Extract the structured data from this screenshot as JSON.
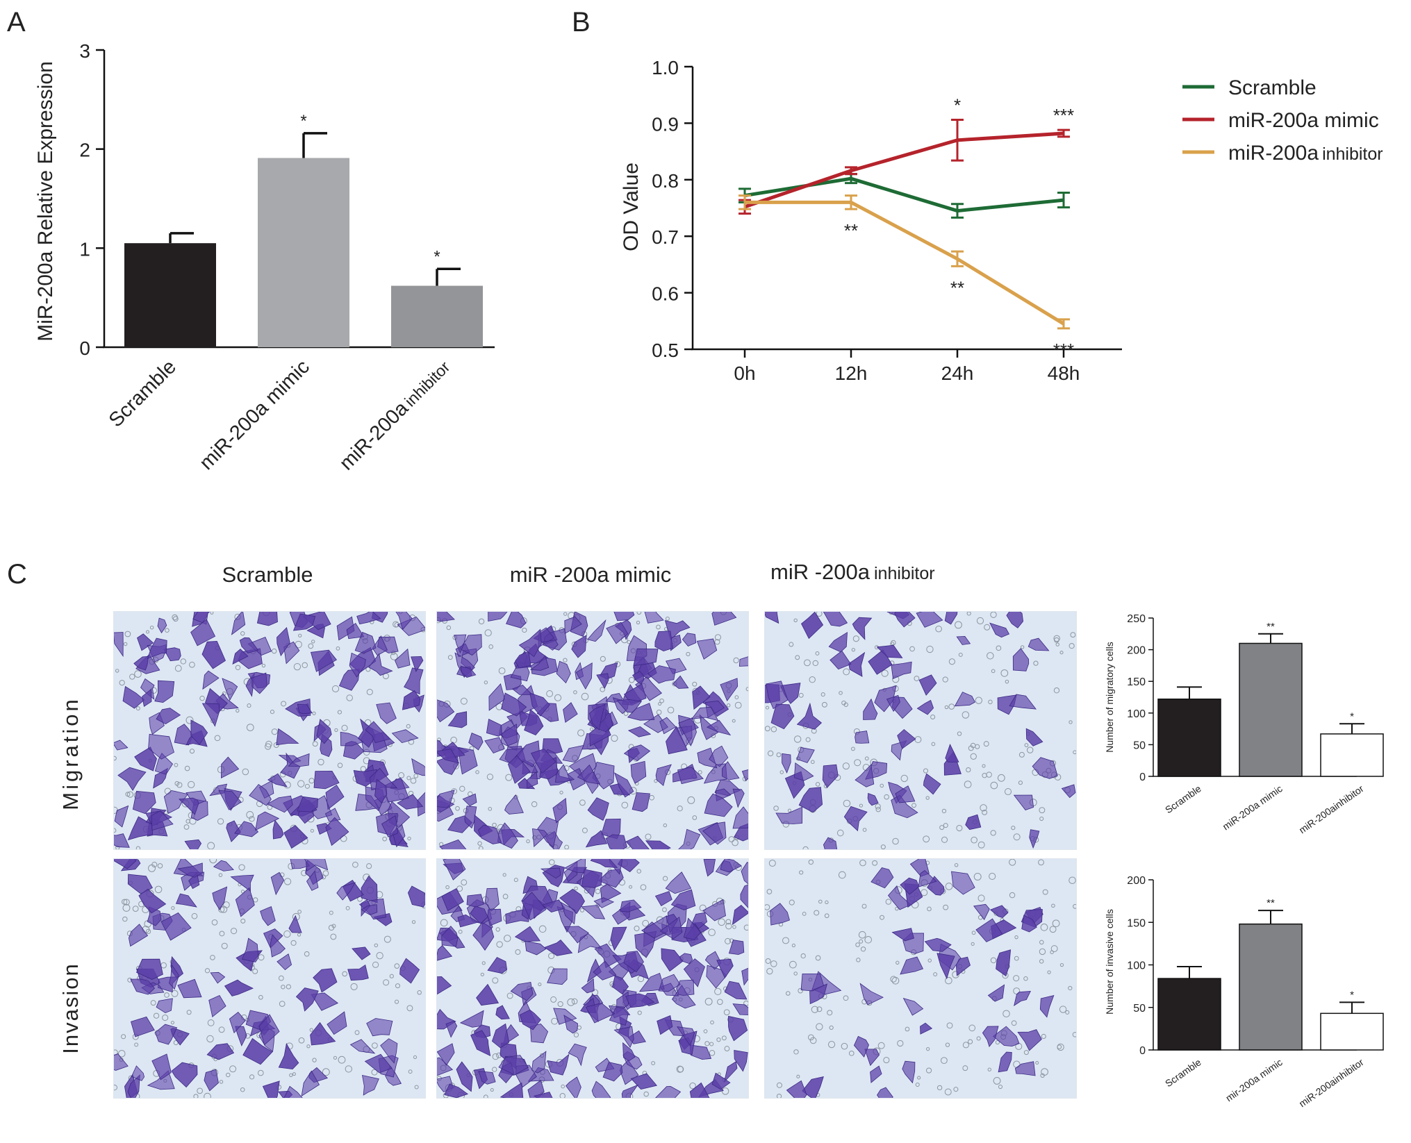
{
  "colors": {
    "scramble_bar": "#231f20",
    "mimic_bar": "#a7a9ac",
    "inhibitor_bar_a": "#939598",
    "mimic_bar_c": "#808285",
    "inhibitor_bar_c": "#ffffff",
    "line_scramble": "#1e6b35",
    "line_mimic": "#b5232b",
    "line_inhibitor": "#d9a14c",
    "stain": "#5b3fa8",
    "background_field": "#dde7f3"
  },
  "panels": {
    "a_letter": "A",
    "b_letter": "B",
    "c_letter": "C"
  },
  "chart_data": [
    {
      "panel": "A",
      "type": "bar",
      "ylabel": "MiR-200a Relative Expression",
      "ylim": [
        0,
        3
      ],
      "yticks": [
        "0",
        "1",
        "2",
        "3"
      ],
      "categories": [
        "Scramble",
        "miR-200a mimic",
        "miR-200a inhibitor"
      ],
      "category_main": [
        "Scramble",
        "miR-200a mimic",
        "miR-200a"
      ],
      "category_small": [
        "",
        "",
        "inhibitor"
      ],
      "values": [
        1.05,
        1.91,
        0.62
      ],
      "errors": [
        0.1,
        0.25,
        0.17
      ],
      "significance": [
        "",
        "*",
        "*"
      ]
    },
    {
      "panel": "B",
      "type": "line",
      "ylabel": "OD Value",
      "ylim": [
        0.5,
        1.0
      ],
      "yticks": [
        "0.5",
        "0.6",
        "0.7",
        "0.8",
        "0.9",
        "1.0"
      ],
      "x": [
        "0h",
        "12h",
        "24h",
        "48h"
      ],
      "legend_position": "right",
      "series": [
        {
          "name": "Scramble",
          "values": [
            0.772,
            0.802,
            0.745,
            0.764
          ],
          "errors": [
            0.012,
            0.008,
            0.012,
            0.013
          ],
          "significance": [
            "",
            "",
            "",
            ""
          ]
        },
        {
          "name": "miR-200a mimic",
          "values": [
            0.752,
            0.816,
            0.87,
            0.882
          ],
          "errors": [
            0.012,
            0.006,
            0.036,
            0.006
          ],
          "significance": [
            "",
            "",
            "*",
            "***"
          ]
        },
        {
          "name": "miR-200a inhibitor",
          "name_main": "miR-200a",
          "name_small": "inhibitor",
          "values": [
            0.76,
            0.76,
            0.66,
            0.545
          ],
          "errors": [
            0.012,
            0.012,
            0.013,
            0.008
          ],
          "significance": [
            "",
            "**",
            "**",
            "***"
          ]
        }
      ]
    },
    {
      "panel": "C-migration",
      "type": "bar",
      "ylabel": "Number of migratory cells",
      "ylim": [
        0,
        250
      ],
      "yticks": [
        "0",
        "50",
        "100",
        "150",
        "200",
        "250"
      ],
      "categories": [
        "Scramble",
        "miR-200a mimic",
        "miR-200ainhibitor"
      ],
      "values": [
        122,
        210,
        67
      ],
      "errors": [
        19,
        15,
        16
      ],
      "significance": [
        "",
        "**",
        "*"
      ]
    },
    {
      "panel": "C-invasion",
      "type": "bar",
      "ylabel": "Number of invasive cells",
      "ylim": [
        0,
        200
      ],
      "yticks": [
        "0",
        "50",
        "100",
        "150",
        "200"
      ],
      "categories": [
        "Scramble",
        "mir-200a mimic",
        "miR-200ainhibitor"
      ],
      "values": [
        84,
        148,
        43
      ],
      "errors": [
        14,
        16,
        13
      ],
      "significance": [
        "",
        "**",
        "*"
      ]
    }
  ],
  "micrographs": {
    "col_headers": [
      "Scramble",
      "miR -200a mimic",
      "miR -200a"
    ],
    "col_header_small": "inhibitor",
    "row_labels": [
      "Migration",
      "Invasion"
    ]
  }
}
